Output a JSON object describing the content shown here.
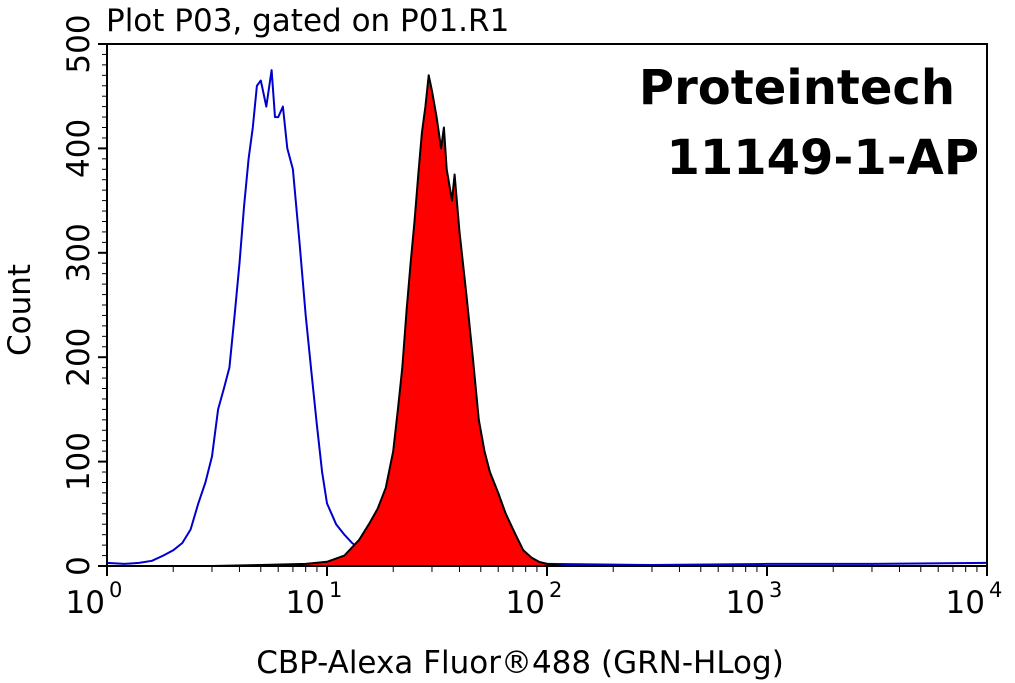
{
  "chart_data": {
    "type": "area",
    "title": "Plot P03, gated on P01.R1",
    "xlabel": "CBP-Alexa Fluor®488 (GRN-HLog)",
    "ylabel": "Count",
    "x_scale": "log",
    "xlim": [
      1,
      10000
    ],
    "ylim": [
      0,
      500
    ],
    "x_ticks": [
      {
        "base": "10",
        "exp": "0"
      },
      {
        "base": "10",
        "exp": "1"
      },
      {
        "base": "10",
        "exp": "2"
      },
      {
        "base": "10",
        "exp": "3"
      },
      {
        "base": "10",
        "exp": "4"
      }
    ],
    "y_ticks": [
      "0",
      "100",
      "200",
      "300",
      "400",
      "500"
    ],
    "y_tick_values": [
      0,
      100,
      200,
      300,
      400,
      500
    ],
    "grid": false,
    "annotations": [
      "Proteintech",
      "11149-1-AP"
    ],
    "series": [
      {
        "style": "outline",
        "color": "#0000cc",
        "points": [
          [
            1.0,
            3
          ],
          [
            1.2,
            2
          ],
          [
            1.4,
            3
          ],
          [
            1.6,
            5
          ],
          [
            1.8,
            10
          ],
          [
            2.0,
            15
          ],
          [
            2.2,
            22
          ],
          [
            2.4,
            35
          ],
          [
            2.6,
            60
          ],
          [
            2.8,
            80
          ],
          [
            3.0,
            105
          ],
          [
            3.2,
            150
          ],
          [
            3.4,
            170
          ],
          [
            3.6,
            190
          ],
          [
            3.8,
            240
          ],
          [
            4.0,
            290
          ],
          [
            4.2,
            345
          ],
          [
            4.4,
            390
          ],
          [
            4.6,
            420
          ],
          [
            4.8,
            460
          ],
          [
            5.0,
            465
          ],
          [
            5.3,
            440
          ],
          [
            5.6,
            475
          ],
          [
            5.8,
            430
          ],
          [
            6.0,
            430
          ],
          [
            6.3,
            440
          ],
          [
            6.6,
            400
          ],
          [
            7.0,
            380
          ],
          [
            7.5,
            310
          ],
          [
            8.0,
            240
          ],
          [
            8.5,
            185
          ],
          [
            9.0,
            135
          ],
          [
            9.5,
            90
          ],
          [
            10.0,
            60
          ],
          [
            11.0,
            40
          ],
          [
            12.0,
            30
          ],
          [
            13.0,
            22
          ],
          [
            15.0,
            12
          ],
          [
            18.0,
            6
          ],
          [
            25.0,
            3
          ],
          [
            40.0,
            2
          ],
          [
            100.0,
            2
          ],
          [
            300.0,
            1
          ],
          [
            1000.0,
            2
          ],
          [
            3000.0,
            2
          ],
          [
            10000.0,
            3
          ]
        ]
      },
      {
        "style": "filled",
        "color": "#ff0000",
        "outline": "#000000",
        "points": [
          [
            3.0,
            0
          ],
          [
            5.0,
            1
          ],
          [
            8.0,
            2
          ],
          [
            10.0,
            4
          ],
          [
            12.0,
            10
          ],
          [
            14.0,
            25
          ],
          [
            15.5,
            40
          ],
          [
            17.0,
            55
          ],
          [
            18.5,
            75
          ],
          [
            20.0,
            110
          ],
          [
            21.0,
            150
          ],
          [
            22.0,
            190
          ],
          [
            23.0,
            245
          ],
          [
            24.0,
            290
          ],
          [
            25.0,
            330
          ],
          [
            26.0,
            375
          ],
          [
            27.0,
            415
          ],
          [
            28.0,
            440
          ],
          [
            29.0,
            470
          ],
          [
            30.0,
            455
          ],
          [
            31.5,
            430
          ],
          [
            33.0,
            400
          ],
          [
            34.0,
            420
          ],
          [
            35.0,
            380
          ],
          [
            37.0,
            350
          ],
          [
            38.0,
            375
          ],
          [
            40.0,
            320
          ],
          [
            43.0,
            260
          ],
          [
            46.0,
            200
          ],
          [
            49.0,
            140
          ],
          [
            52.0,
            110
          ],
          [
            55.0,
            90
          ],
          [
            60.0,
            70
          ],
          [
            65.0,
            50
          ],
          [
            72.0,
            30
          ],
          [
            78.0,
            15
          ],
          [
            85.0,
            8
          ],
          [
            92.0,
            4
          ],
          [
            100.0,
            2
          ],
          [
            120.0,
            0
          ]
        ]
      }
    ]
  }
}
